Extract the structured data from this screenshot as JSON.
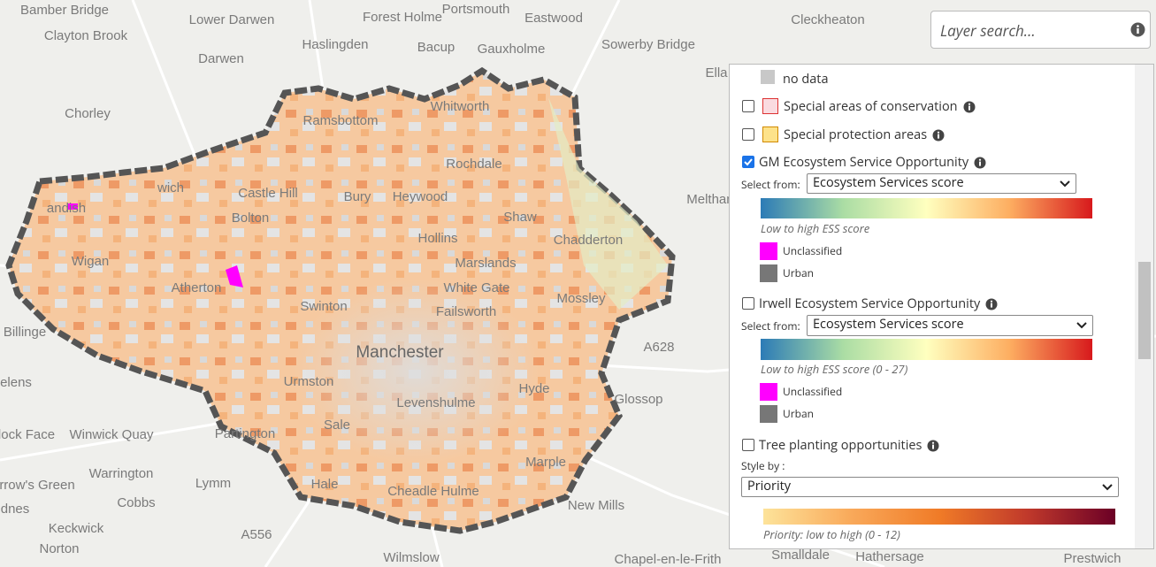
{
  "search": {
    "placeholder": "Layer search..."
  },
  "map": {
    "city": "Manchester",
    "labels": [
      "Bamber Bridge",
      "Clayton Brook",
      "Lower Darwen",
      "Forest Holme",
      "Portsmouth",
      "Eastwood",
      "Haslingden",
      "Bacup",
      "Gauxholme",
      "Sowerby Bridge",
      "Cleckheaton",
      "Darwen",
      "Chorley",
      "Whitworth",
      "Ramsbottom",
      "Rochdale",
      "Ella",
      "Meltham",
      "Bolton",
      "Bury",
      "Heywood",
      "Castle Hill",
      "wich",
      "andish",
      "Wigan",
      "Shaw",
      "Hollins",
      "Chadderton",
      "Marslands",
      "Atherton",
      "Swinton",
      "White Gate",
      "Failsworth",
      "Mossley",
      "Billinge",
      "A628",
      "Urmston",
      "Hyde",
      "Glossop",
      "elens",
      "Levenshulme",
      "Sale",
      "Partington",
      "lock Face",
      "Winwick Quay",
      "Warrington",
      "Lymm",
      "Hale",
      "Cheadle Hulme",
      "Marple",
      "rrow's Green",
      "Cobbs",
      "New Mills",
      "dnes",
      "Keckwick",
      "Norton",
      "A556",
      "Wilmslow",
      "Chapel-en-le-Frith",
      "Smalldale",
      "Hathersage",
      "Prestwich"
    ]
  },
  "layers": {
    "no_data": "no data",
    "sac": {
      "label": "Special areas of conservation",
      "checked": false
    },
    "spa": {
      "label": "Special protection areas",
      "checked": false
    },
    "gm": {
      "label": "GM Ecosystem Service Opportunity",
      "checked": true,
      "select_label": "Select from:",
      "select_value": "Ecosystem Services score",
      "legend": "Low to high ESS score",
      "unclassified": "Unclassified",
      "urban": "Urban"
    },
    "irwell": {
      "label": "Irwell Ecosystem Service Opportunity",
      "checked": false,
      "select_label": "Select from:",
      "select_value": "Ecosystem Services score",
      "legend": "Low to high ESS score (0 - 27)",
      "unclassified": "Unclassified",
      "urban": "Urban"
    },
    "tree": {
      "label": "Tree planting opportunities",
      "checked": false,
      "style_label": "Style by :",
      "style_value": "Priority",
      "legend": "Priority: low to high (0 - 12)"
    }
  }
}
